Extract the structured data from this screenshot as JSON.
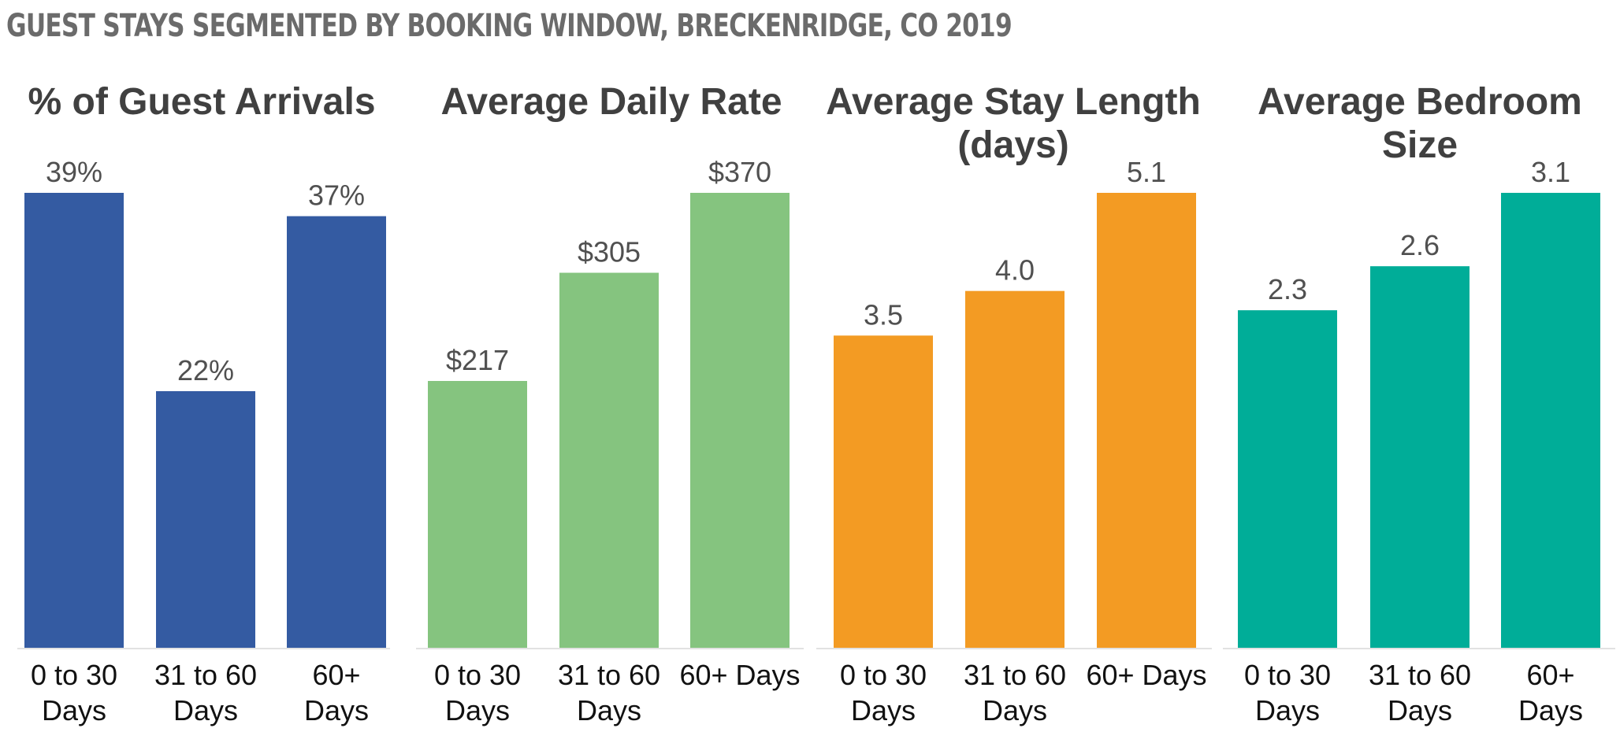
{
  "title": "GUEST STAYS SEGMENTED BY BOOKING WINDOW, BRECKENRIDGE, CO 2019",
  "chart_data": [
    {
      "type": "bar",
      "title": [
        "% of Guest Arrivals"
      ],
      "categories": [
        [
          "0 to 30",
          "Days"
        ],
        [
          "31 to 60",
          "Days"
        ],
        [
          "60+",
          "Days"
        ]
      ],
      "values": [
        39,
        22,
        37
      ],
      "labels": [
        "39%",
        "22%",
        "37%"
      ],
      "ylim": [
        0,
        39
      ],
      "color": "#345ba2"
    },
    {
      "type": "bar",
      "title": [
        "Average Daily Rate"
      ],
      "categories": [
        [
          "0 to 30",
          "Days"
        ],
        [
          "31 to 60",
          "Days"
        ],
        [
          "60+ Days"
        ]
      ],
      "values": [
        217,
        305,
        370
      ],
      "labels": [
        "$217",
        "$305",
        "$370"
      ],
      "ylim": [
        0,
        370
      ],
      "color": "#85c47f"
    },
    {
      "type": "bar",
      "title": [
        "Average Stay Length",
        "(days)"
      ],
      "categories": [
        [
          "0 to 30",
          "Days"
        ],
        [
          "31 to 60",
          "Days"
        ],
        [
          "60+ Days"
        ]
      ],
      "values": [
        3.5,
        4.0,
        5.1
      ],
      "labels": [
        "3.5",
        "4.0",
        "5.1"
      ],
      "ylim": [
        0,
        5.1
      ],
      "color": "#f39b23"
    },
    {
      "type": "bar",
      "title": [
        "Average Bedroom",
        "Size"
      ],
      "categories": [
        [
          "0 to 30",
          "Days"
        ],
        [
          "31 to 60",
          "Days"
        ],
        [
          "60+",
          "Days"
        ]
      ],
      "values": [
        2.3,
        2.6,
        3.1
      ],
      "labels": [
        "2.3",
        "2.6",
        "3.1"
      ],
      "ylim": [
        0,
        3.1
      ],
      "color": "#00ad98"
    }
  ]
}
